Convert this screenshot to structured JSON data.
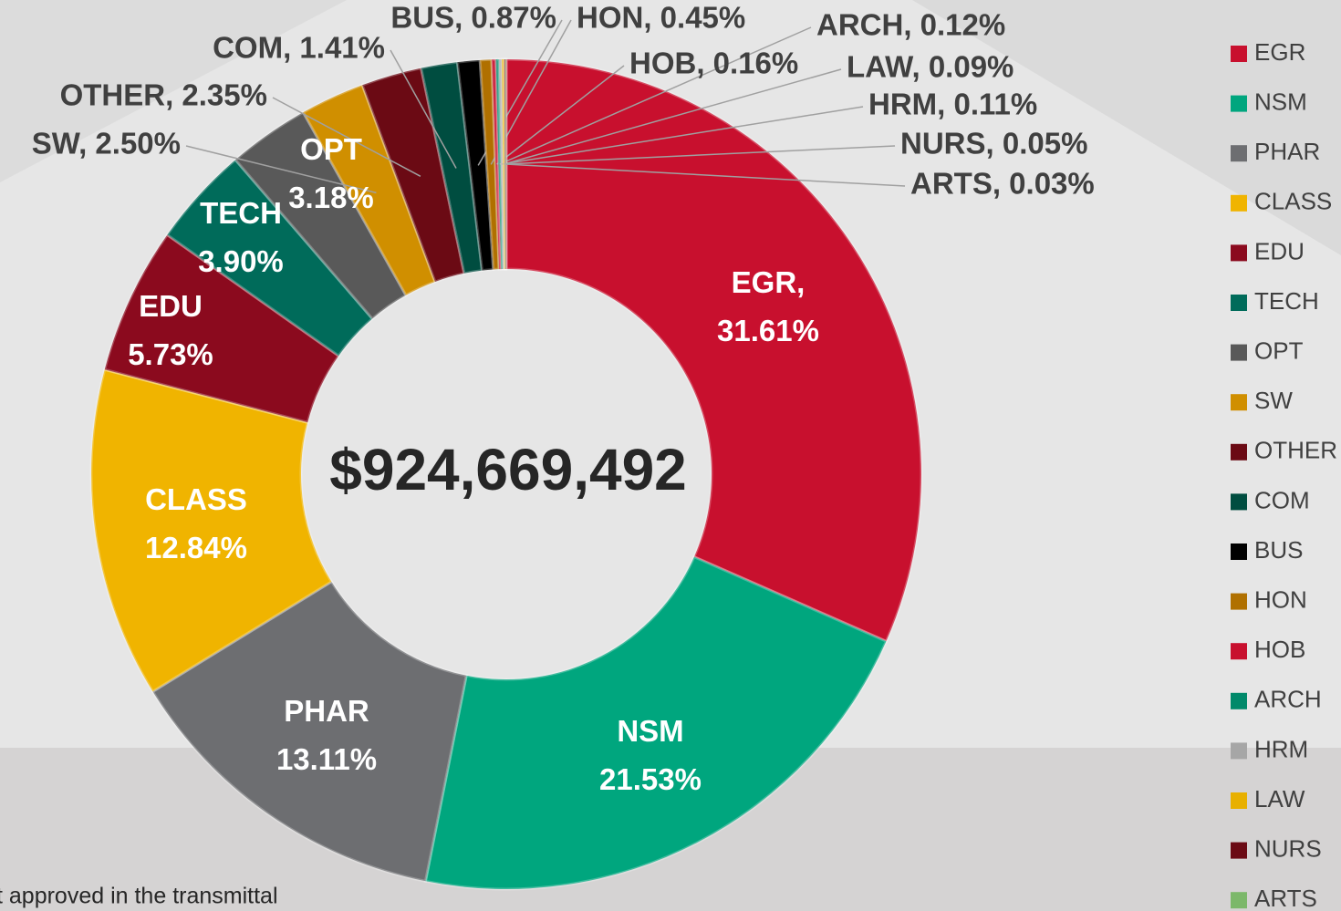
{
  "chart_data": {
    "type": "donut",
    "center_text": "$924,669,492",
    "footnote": "t approved in the transmittal",
    "categories": [
      "EGR",
      "NSM",
      "PHAR",
      "CLASS",
      "EDU",
      "TECH",
      "OPT",
      "SW",
      "OTHER",
      "COM",
      "BUS",
      "HON",
      "HOB",
      "ARCH",
      "HRM",
      "LAW",
      "NURS",
      "ARTS"
    ],
    "values": [
      31.61,
      21.53,
      13.11,
      12.84,
      5.73,
      3.9,
      3.18,
      2.5,
      2.35,
      1.41,
      0.87,
      0.45,
      0.16,
      0.12,
      0.11,
      0.09,
      0.05,
      0.03
    ],
    "value_labels": [
      "EGR,\n31.61%",
      "NSM\n21.53%",
      "PHAR\n13.11%",
      "CLASS\n12.84%",
      "EDU\n5.73%",
      "TECH\n3.90%",
      "OPT\n3.18%",
      "SW, 2.50%",
      "OTHER, 2.35%",
      "COM, 1.41%",
      "BUS, 0.87%",
      "HON, 0.45%",
      "HOB, 0.16%",
      "ARCH, 0.12%",
      "HRM, 0.11%",
      "LAW, 0.09%",
      "NURS, 0.05%",
      "ARTS, 0.03%"
    ],
    "colors": [
      "#c8102e",
      "#00a67e",
      "#6d6e71",
      "#f0b400",
      "#8b0a1e",
      "#006b5a",
      "#595959",
      "#d08f00",
      "#6b0a14",
      "#004d40",
      "#000000",
      "#b07000",
      "#c8102e",
      "#00896a",
      "#a6a6a6",
      "#e8b000",
      "#6b0a14",
      "#7cb86a"
    ],
    "legend": "right"
  }
}
